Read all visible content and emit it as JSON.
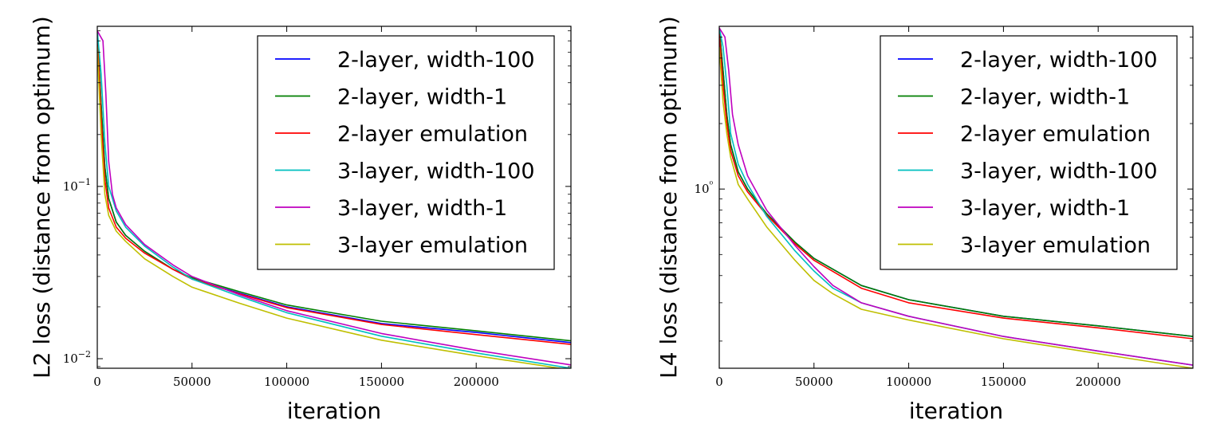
{
  "chart_data": [
    {
      "type": "line",
      "title": "",
      "xlabel": "iteration",
      "ylabel": "L2 loss (distance from optimum)",
      "yscale": "log",
      "xlim": [
        0,
        250000
      ],
      "ylim": [
        0.0088,
        0.85
      ],
      "xticks": [
        0,
        50000,
        100000,
        150000,
        200000
      ],
      "xtick_labels": [
        "0",
        "50000",
        "100000",
        "150000",
        "200000"
      ],
      "yticks": [
        0.01,
        0.1
      ],
      "ytick_labels": [
        "10−2",
        "10−1"
      ],
      "grid": false,
      "legend_position": "top-right",
      "series": [
        {
          "name": "2-layer, width-100",
          "color": "#0000ff",
          "x": [
            0,
            2000,
            4000,
            6000,
            10000,
            15000,
            25000,
            40000,
            50000,
            75000,
            100000,
            150000,
            200000,
            250000
          ],
          "y": [
            0.8,
            0.3,
            0.13,
            0.085,
            0.062,
            0.052,
            0.042,
            0.033,
            0.029,
            0.024,
            0.02,
            0.016,
            0.0142,
            0.0124
          ]
        },
        {
          "name": "2-layer, width-1",
          "color": "#007f00",
          "x": [
            0,
            2000,
            4000,
            6000,
            10000,
            15000,
            25000,
            40000,
            50000,
            75000,
            100000,
            150000,
            200000,
            250000
          ],
          "y": [
            0.8,
            0.3,
            0.13,
            0.085,
            0.062,
            0.052,
            0.042,
            0.033,
            0.0295,
            0.0245,
            0.0205,
            0.0165,
            0.0145,
            0.0127
          ]
        },
        {
          "name": "2-layer emulation",
          "color": "#ff0000",
          "x": [
            0,
            2000,
            4000,
            6000,
            10000,
            15000,
            25000,
            40000,
            50000,
            75000,
            100000,
            150000,
            200000,
            250000
          ],
          "y": [
            0.8,
            0.25,
            0.11,
            0.075,
            0.058,
            0.05,
            0.041,
            0.033,
            0.029,
            0.0238,
            0.0198,
            0.0158,
            0.0138,
            0.0121
          ]
        },
        {
          "name": "3-layer, width-100",
          "color": "#00bfbf",
          "x": [
            0,
            2000,
            4000,
            6000,
            10000,
            15000,
            25000,
            40000,
            50000,
            75000,
            100000,
            150000,
            200000,
            250000
          ],
          "y": [
            0.8,
            0.45,
            0.18,
            0.1,
            0.072,
            0.058,
            0.045,
            0.034,
            0.029,
            0.023,
            0.0185,
            0.0135,
            0.0108,
            0.0088
          ]
        },
        {
          "name": "3-layer, width-1",
          "color": "#bf00bf",
          "x": [
            0,
            3000,
            4500,
            6000,
            8000,
            10000,
            15000,
            25000,
            40000,
            50000,
            75000,
            100000,
            150000,
            200000,
            250000
          ],
          "y": [
            0.8,
            0.7,
            0.35,
            0.14,
            0.09,
            0.075,
            0.06,
            0.046,
            0.035,
            0.03,
            0.0235,
            0.019,
            0.014,
            0.0112,
            0.0092
          ]
        },
        {
          "name": "3-layer emulation",
          "color": "#bfbf00",
          "x": [
            0,
            2000,
            4000,
            6000,
            10000,
            15000,
            25000,
            40000,
            50000,
            75000,
            100000,
            150000,
            200000,
            250000
          ],
          "y": [
            0.65,
            0.2,
            0.09,
            0.068,
            0.055,
            0.048,
            0.038,
            0.03,
            0.026,
            0.021,
            0.0172,
            0.0128,
            0.0104,
            0.0086
          ]
        }
      ]
    },
    {
      "type": "line",
      "title": "",
      "xlabel": "iteration",
      "ylabel": "L4 loss (distance from optimum)",
      "yscale": "log",
      "xlim": [
        0,
        250000
      ],
      "ylim": [
        0.15,
        5.6
      ],
      "xticks": [
        0,
        50000,
        100000,
        150000,
        200000
      ],
      "xtick_labels": [
        "0",
        "50000",
        "100000",
        "150000",
        "200000"
      ],
      "yticks": [
        1
      ],
      "ytick_labels": [
        "10⁰"
      ],
      "grid": false,
      "legend_position": "top-right",
      "series": [
        {
          "name": "2-layer, width-100",
          "color": "#0000ff",
          "x": [
            0,
            2000,
            4000,
            6000,
            10000,
            15000,
            25000,
            40000,
            50000,
            75000,
            100000,
            150000,
            200000,
            250000
          ],
          "y": [
            5.5,
            3.5,
            2.2,
            1.6,
            1.2,
            1.0,
            0.77,
            0.57,
            0.48,
            0.36,
            0.31,
            0.26,
            0.235,
            0.21
          ]
        },
        {
          "name": "2-layer, width-1",
          "color": "#007f00",
          "x": [
            0,
            2000,
            4000,
            6000,
            10000,
            15000,
            25000,
            40000,
            50000,
            75000,
            100000,
            150000,
            200000,
            250000
          ],
          "y": [
            5.5,
            3.5,
            2.2,
            1.6,
            1.2,
            1.0,
            0.77,
            0.57,
            0.48,
            0.36,
            0.31,
            0.26,
            0.235,
            0.21
          ]
        },
        {
          "name": "2-layer emulation",
          "color": "#ff0000",
          "x": [
            0,
            2000,
            4000,
            6000,
            10000,
            15000,
            25000,
            40000,
            50000,
            75000,
            100000,
            150000,
            200000,
            250000
          ],
          "y": [
            5.2,
            3.0,
            2.0,
            1.5,
            1.15,
            0.97,
            0.76,
            0.56,
            0.47,
            0.35,
            0.3,
            0.255,
            0.23,
            0.205
          ]
        },
        {
          "name": "3-layer, width-100",
          "color": "#00bfbf",
          "x": [
            0,
            2000,
            4000,
            6000,
            10000,
            15000,
            25000,
            40000,
            50000,
            60000,
            75000,
            100000,
            150000,
            200000,
            250000
          ],
          "y": [
            5.5,
            4.5,
            3.0,
            1.8,
            1.3,
            1.05,
            0.75,
            0.52,
            0.42,
            0.35,
            0.3,
            0.26,
            0.21,
            0.18,
            0.155
          ]
        },
        {
          "name": "3-layer, width-1",
          "color": "#bf00bf",
          "x": [
            0,
            3000,
            5000,
            7000,
            10000,
            15000,
            25000,
            40000,
            50000,
            60000,
            75000,
            100000,
            150000,
            200000,
            250000
          ],
          "y": [
            5.5,
            5.0,
            3.5,
            2.2,
            1.6,
            1.15,
            0.8,
            0.55,
            0.44,
            0.36,
            0.3,
            0.26,
            0.21,
            0.18,
            0.155
          ]
        },
        {
          "name": "3-layer emulation",
          "color": "#bfbf00",
          "x": [
            0,
            2000,
            4000,
            6000,
            10000,
            15000,
            25000,
            40000,
            50000,
            60000,
            75000,
            100000,
            150000,
            200000,
            250000
          ],
          "y": [
            4.5,
            2.5,
            1.8,
            1.4,
            1.05,
            0.9,
            0.67,
            0.47,
            0.38,
            0.33,
            0.28,
            0.25,
            0.205,
            0.175,
            0.15
          ]
        }
      ]
    }
  ]
}
